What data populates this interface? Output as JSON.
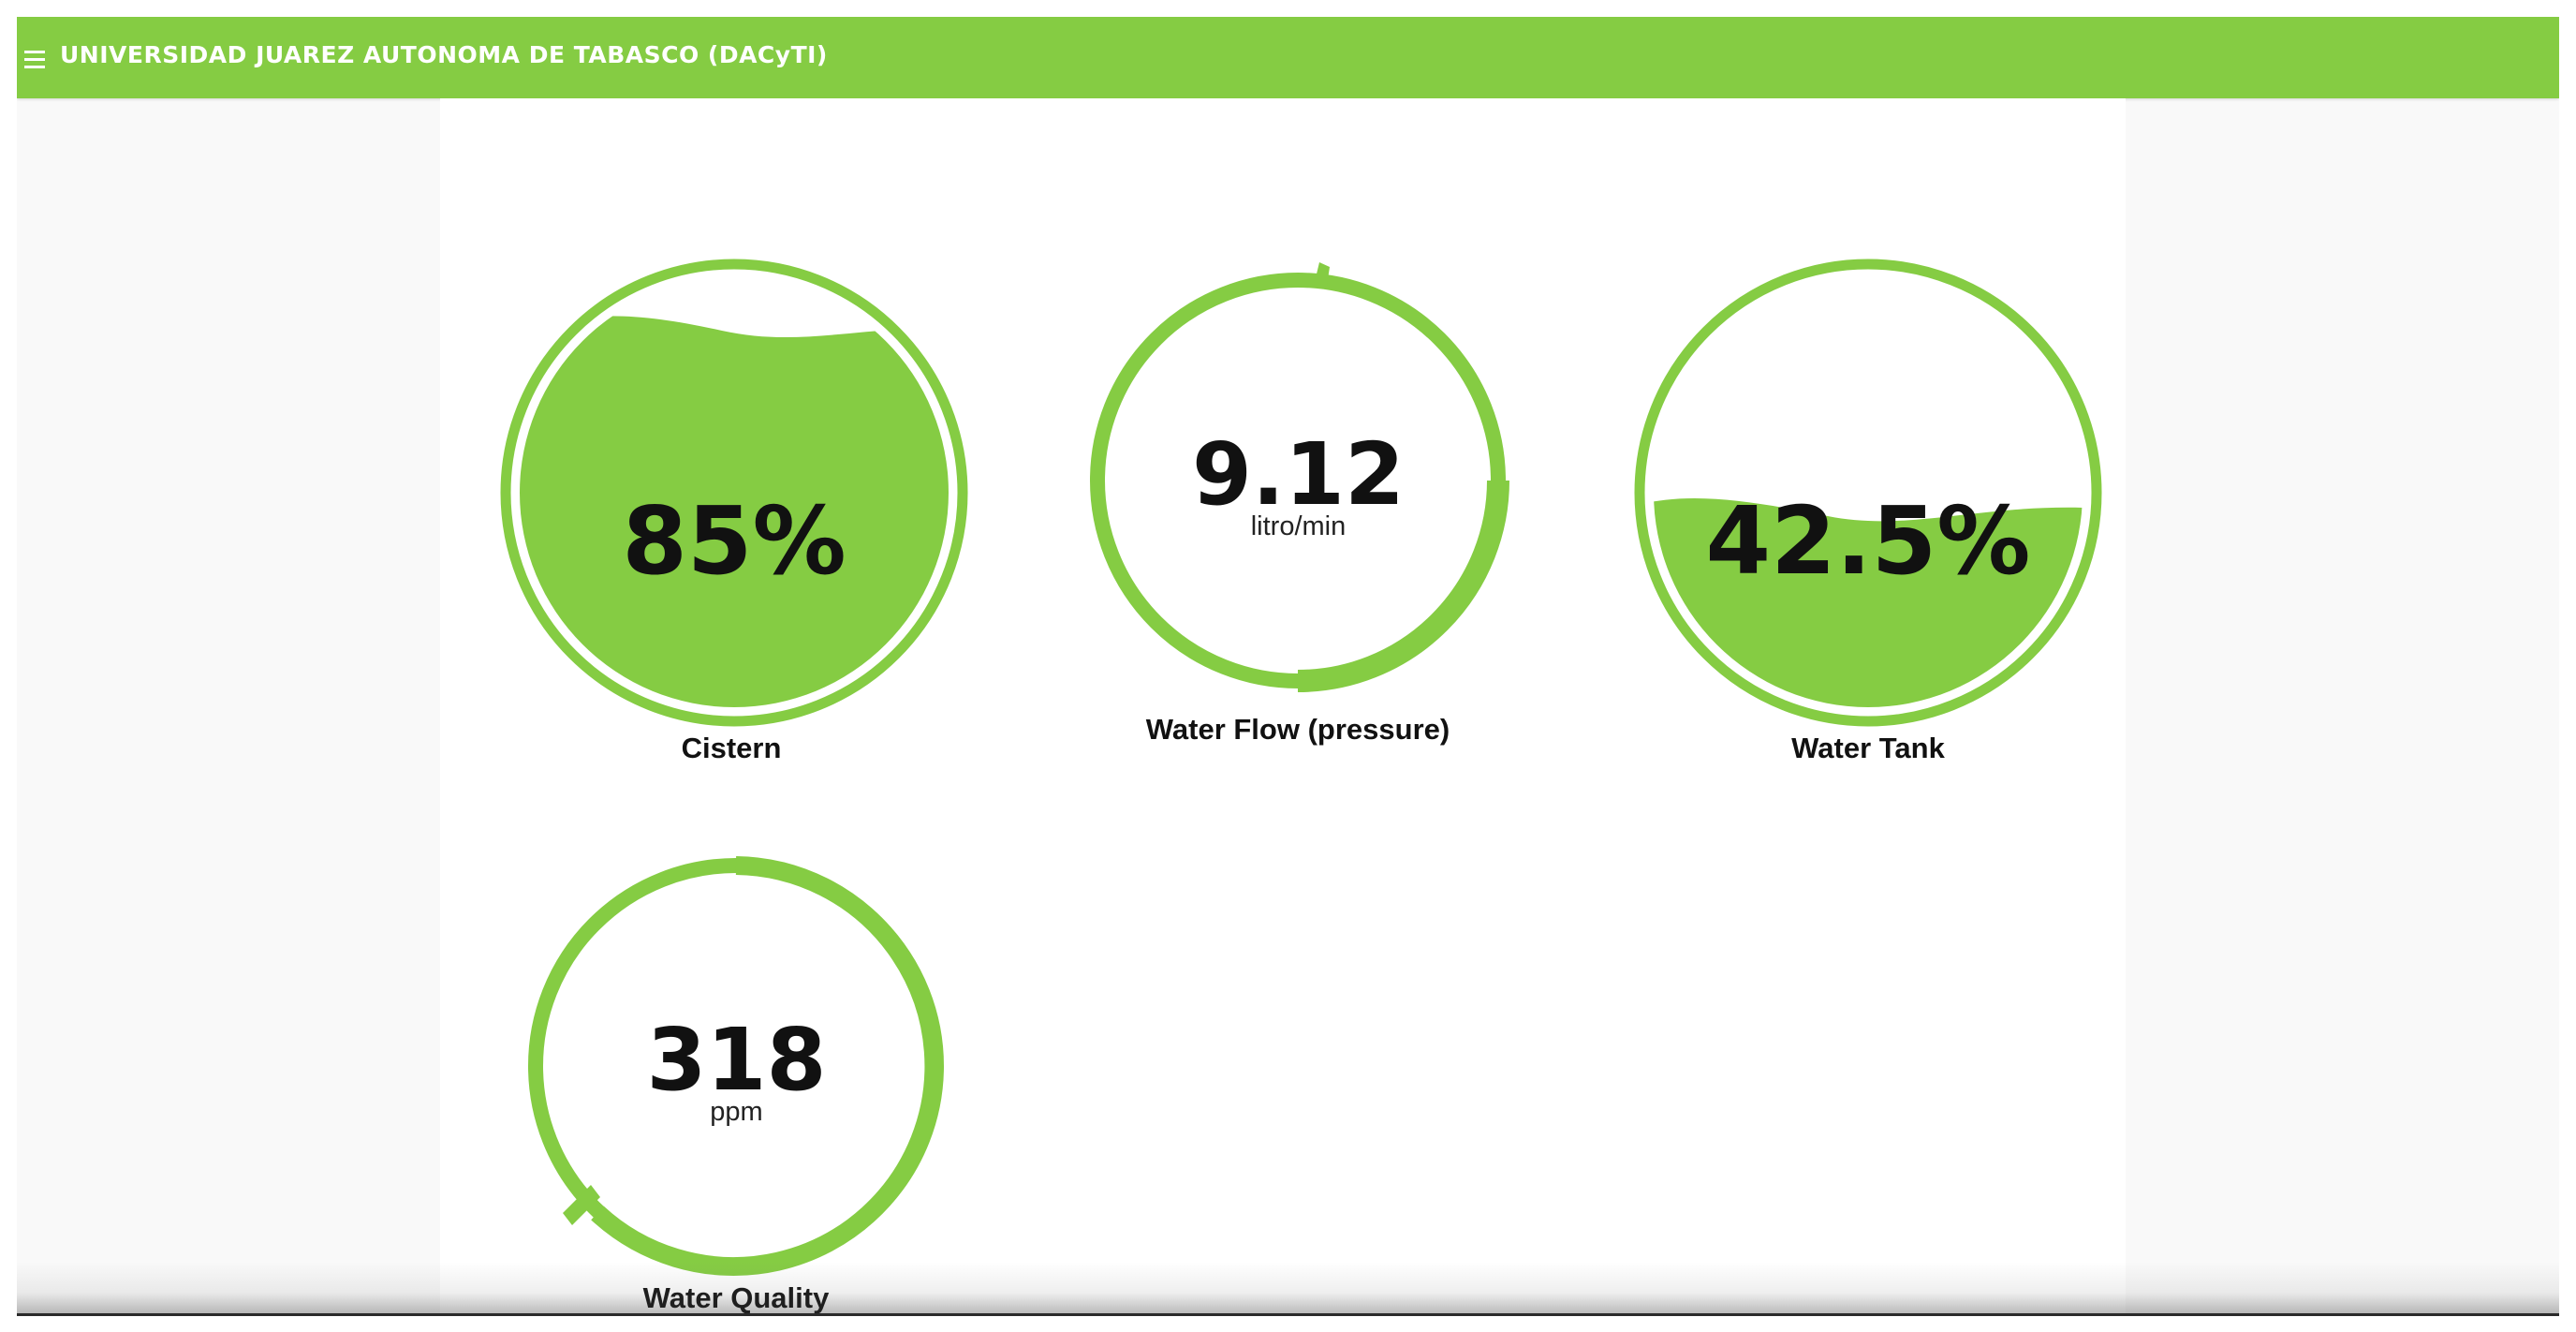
{
  "app": {
    "title": "UNIVERSIDAD JUAREZ AUTONOMA DE TABASCO (DACyTI)",
    "menu_icon": "hamburger-menu-icon"
  },
  "colors": {
    "brand": "#85cc43",
    "text": "#111111"
  },
  "gauges": {
    "cistern": {
      "value": "85%",
      "level_percent": 85,
      "label": "Cistern"
    },
    "water_flow": {
      "value": "9.12",
      "unit": "litro/min",
      "label": "Water Flow (pressure)"
    },
    "water_tank": {
      "value": "42.5%",
      "level_percent": 42.5,
      "label": "Water Tank"
    },
    "water_quality": {
      "value": "318",
      "unit": "ppm",
      "label": "Water Quality"
    }
  }
}
